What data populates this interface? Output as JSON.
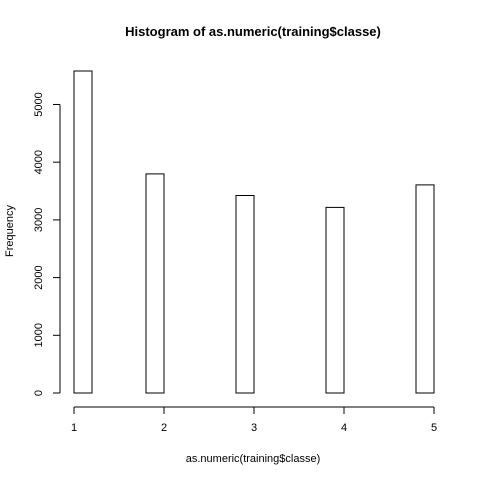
{
  "chart_data": {
    "type": "bar",
    "title": "Histogram of as.numeric(training$classe)",
    "xlabel": "as.numeric(training$classe)",
    "ylabel": "Frequency",
    "xlim": [
      1,
      5
    ],
    "ylim": [
      0,
      5580
    ],
    "x_ticks": [
      1,
      2,
      3,
      4,
      5
    ],
    "y_ticks": [
      0,
      1000,
      2000,
      3000,
      4000,
      5000
    ],
    "bins": [
      {
        "x0": 1.0,
        "x1": 1.2,
        "value": 5580
      },
      {
        "x0": 1.8,
        "x1": 2.0,
        "value": 3797
      },
      {
        "x0": 2.8,
        "x1": 3.0,
        "value": 3422
      },
      {
        "x0": 3.8,
        "x1": 4.0,
        "value": 3216
      },
      {
        "x0": 4.8,
        "x1": 5.0,
        "value": 3607
      }
    ],
    "grid": false
  }
}
